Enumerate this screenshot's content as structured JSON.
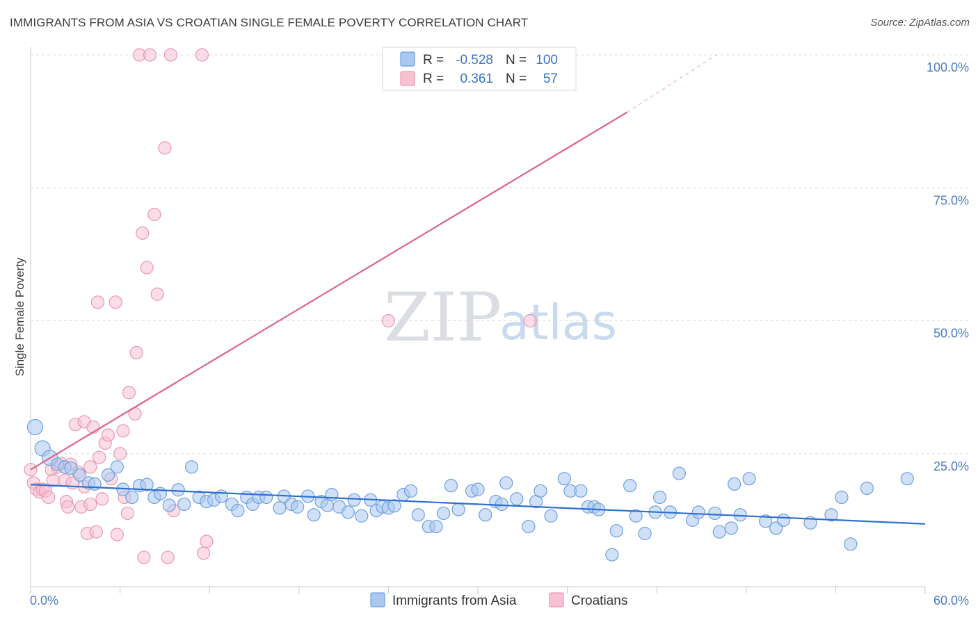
{
  "title": "IMMIGRANTS FROM ASIA VS CROATIAN SINGLE FEMALE POVERTY CORRELATION CHART",
  "source": "Source: ZipAtlas.com",
  "watermark": {
    "zip": "ZIP",
    "atlas": "atlas"
  },
  "colors": {
    "blue_fill": "#a9c8f0",
    "blue_stroke": "#6d9fe0",
    "blue_line": "#2f6fce",
    "pink_fill": "#f6c1d1",
    "pink_stroke": "#eb97b2",
    "pink_line": "#e0628c",
    "grid": "#dcdcdc",
    "axis_text": "#4a7cc7"
  },
  "legend": {
    "rows": [
      {
        "r_label": "R =",
        "r_value": "-0.528",
        "n_label": "N =",
        "n_value": "100"
      },
      {
        "r_label": "R =",
        "r_value": "0.361",
        "n_label": "N =",
        "n_value": "57"
      }
    ]
  },
  "chart_data": {
    "type": "scatter",
    "ylabel": "Single Female Poverty",
    "xlabel": "",
    "xlim": [
      0,
      60
    ],
    "ylim": [
      0,
      100
    ],
    "x_tick_labels": [
      "0.0%",
      "60.0%"
    ],
    "y_tick_labels": [
      "25.0%",
      "50.0%",
      "75.0%",
      "100.0%"
    ],
    "y_ticks": [
      25,
      50,
      75,
      100
    ],
    "grid": true,
    "legend_position": "top-center",
    "series": [
      {
        "name": "Immigrants from Asia",
        "color": "#6d9fe0",
        "trend": {
          "x": [
            0,
            60
          ],
          "y": [
            19.2,
            11.8
          ]
        },
        "points": [
          [
            0.3,
            30.0
          ],
          [
            0.8,
            26.0
          ],
          [
            1.3,
            24.2
          ],
          [
            1.8,
            23.0
          ],
          [
            2.3,
            22.5
          ],
          [
            2.7,
            22.3
          ],
          [
            3.3,
            21.0
          ],
          [
            3.9,
            19.5
          ],
          [
            4.3,
            19.3
          ],
          [
            5.2,
            21.0
          ],
          [
            5.8,
            22.5
          ],
          [
            6.2,
            18.3
          ],
          [
            6.8,
            16.8
          ],
          [
            7.3,
            19.0
          ],
          [
            7.8,
            19.2
          ],
          [
            8.3,
            16.8
          ],
          [
            8.7,
            17.5
          ],
          [
            9.3,
            15.3
          ],
          [
            9.9,
            18.2
          ],
          [
            10.3,
            15.5
          ],
          [
            10.8,
            22.5
          ],
          [
            11.3,
            16.8
          ],
          [
            11.8,
            16.0
          ],
          [
            12.3,
            16.3
          ],
          [
            12.8,
            17.0
          ],
          [
            13.5,
            15.5
          ],
          [
            13.9,
            14.3
          ],
          [
            14.5,
            16.8
          ],
          [
            14.9,
            15.5
          ],
          [
            15.3,
            16.8
          ],
          [
            15.8,
            16.8
          ],
          [
            16.7,
            14.8
          ],
          [
            17.0,
            17.0
          ],
          [
            17.5,
            15.5
          ],
          [
            17.9,
            15.0
          ],
          [
            18.6,
            17.0
          ],
          [
            19.0,
            13.5
          ],
          [
            19.5,
            16.0
          ],
          [
            19.9,
            15.3
          ],
          [
            20.2,
            17.3
          ],
          [
            20.7,
            15.0
          ],
          [
            21.3,
            14.0
          ],
          [
            21.7,
            16.3
          ],
          [
            22.2,
            13.3
          ],
          [
            22.8,
            16.3
          ],
          [
            23.2,
            14.3
          ],
          [
            23.6,
            15.0
          ],
          [
            24.0,
            14.8
          ],
          [
            24.4,
            15.2
          ],
          [
            25.0,
            17.3
          ],
          [
            25.5,
            18.0
          ],
          [
            26.0,
            13.5
          ],
          [
            26.7,
            11.3
          ],
          [
            27.2,
            11.3
          ],
          [
            27.7,
            13.8
          ],
          [
            28.2,
            19.0
          ],
          [
            28.7,
            14.5
          ],
          [
            29.6,
            18.0
          ],
          [
            30.0,
            18.3
          ],
          [
            30.5,
            13.5
          ],
          [
            31.2,
            16.0
          ],
          [
            31.6,
            15.5
          ],
          [
            31.9,
            19.5
          ],
          [
            32.6,
            16.5
          ],
          [
            33.4,
            11.3
          ],
          [
            33.9,
            16.0
          ],
          [
            34.2,
            18.0
          ],
          [
            34.9,
            13.3
          ],
          [
            35.8,
            20.3
          ],
          [
            36.2,
            18.0
          ],
          [
            36.9,
            18.0
          ],
          [
            37.4,
            15.0
          ],
          [
            37.8,
            15.0
          ],
          [
            38.1,
            14.5
          ],
          [
            39.0,
            6.0
          ],
          [
            39.3,
            10.5
          ],
          [
            40.2,
            19.0
          ],
          [
            40.6,
            13.3
          ],
          [
            41.2,
            10.0
          ],
          [
            41.9,
            14.0
          ],
          [
            42.2,
            16.8
          ],
          [
            42.9,
            14.0
          ],
          [
            43.5,
            21.3
          ],
          [
            44.4,
            12.5
          ],
          [
            44.8,
            14.0
          ],
          [
            45.9,
            13.8
          ],
          [
            46.2,
            10.3
          ],
          [
            47.0,
            11.0
          ],
          [
            47.2,
            19.3
          ],
          [
            47.6,
            13.5
          ],
          [
            48.2,
            20.3
          ],
          [
            49.3,
            12.3
          ],
          [
            50.0,
            11.0
          ],
          [
            50.5,
            12.5
          ],
          [
            52.3,
            12.0
          ],
          [
            53.7,
            13.5
          ],
          [
            54.4,
            16.8
          ],
          [
            55.0,
            8.0
          ],
          [
            56.1,
            18.5
          ],
          [
            58.8,
            20.3
          ]
        ]
      },
      {
        "name": "Croatians",
        "color": "#eb97b2",
        "trend": {
          "x": [
            0,
            40
          ],
          "y": [
            22.0,
            89.2
          ]
        },
        "trend_extension": {
          "x": [
            40,
            46
          ],
          "y": [
            89.2,
            100
          ]
        },
        "points": [
          [
            0.0,
            22.0
          ],
          [
            0.2,
            19.5
          ],
          [
            0.4,
            18.3
          ],
          [
            0.6,
            17.8
          ],
          [
            0.8,
            18.3
          ],
          [
            1.0,
            18.0
          ],
          [
            1.2,
            16.8
          ],
          [
            1.4,
            22.0
          ],
          [
            1.5,
            20.0
          ],
          [
            1.8,
            22.5
          ],
          [
            2.0,
            23.2
          ],
          [
            2.3,
            20.0
          ],
          [
            2.4,
            16.0
          ],
          [
            2.5,
            15.0
          ],
          [
            2.7,
            23.0
          ],
          [
            2.8,
            19.5
          ],
          [
            3.0,
            30.5
          ],
          [
            3.2,
            21.5
          ],
          [
            3.4,
            15.0
          ],
          [
            3.6,
            31.0
          ],
          [
            3.6,
            18.8
          ],
          [
            3.8,
            10.0
          ],
          [
            4.0,
            15.5
          ],
          [
            4.0,
            22.5
          ],
          [
            4.2,
            30.0
          ],
          [
            4.4,
            10.3
          ],
          [
            4.5,
            53.5
          ],
          [
            4.6,
            24.3
          ],
          [
            4.8,
            16.5
          ],
          [
            5.0,
            27.0
          ],
          [
            5.2,
            28.5
          ],
          [
            5.4,
            20.3
          ],
          [
            5.7,
            53.5
          ],
          [
            5.8,
            9.8
          ],
          [
            6.0,
            25.0
          ],
          [
            6.2,
            29.3
          ],
          [
            6.3,
            16.8
          ],
          [
            6.5,
            13.8
          ],
          [
            6.6,
            36.5
          ],
          [
            7.0,
            32.5
          ],
          [
            7.1,
            44.0
          ],
          [
            7.3,
            100.0
          ],
          [
            7.5,
            66.5
          ],
          [
            7.6,
            5.5
          ],
          [
            7.8,
            60.0
          ],
          [
            8.0,
            100.0
          ],
          [
            8.3,
            70.0
          ],
          [
            8.5,
            55.0
          ],
          [
            9.0,
            82.5
          ],
          [
            9.2,
            5.5
          ],
          [
            9.4,
            100.0
          ],
          [
            9.6,
            14.3
          ],
          [
            11.5,
            100.0
          ],
          [
            11.6,
            6.3
          ],
          [
            11.8,
            8.5
          ],
          [
            24.0,
            50.0
          ],
          [
            33.5,
            50.0
          ]
        ]
      }
    ]
  }
}
